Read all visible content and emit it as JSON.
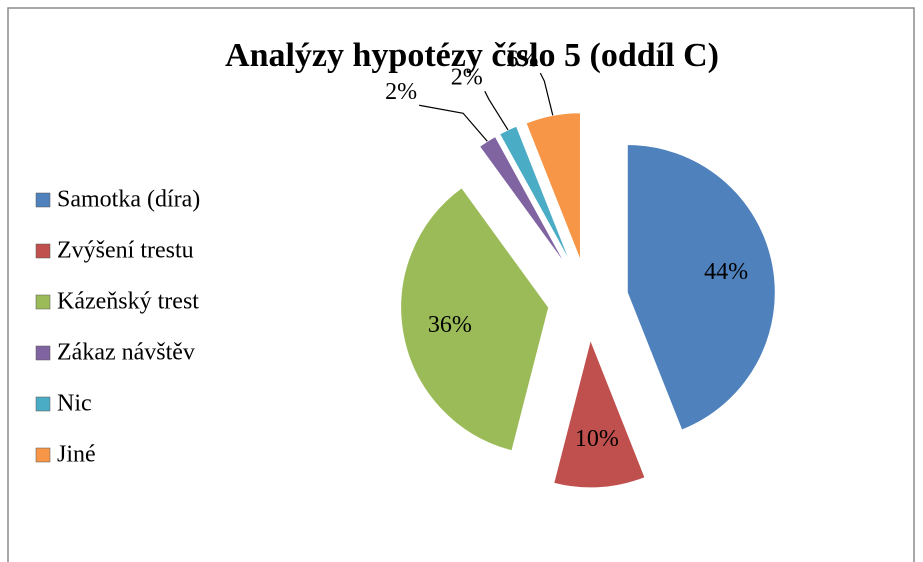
{
  "chart_data": {
    "type": "pie",
    "title": "Analýzy hypotézy číslo 5 (oddíl C)",
    "categories": [
      "Samotka (díra)",
      "Zvýšení trestu",
      "Kázeňský trest",
      "Zákaz návštěv",
      "Nic",
      "Jiné"
    ],
    "values": [
      44,
      10,
      36,
      2,
      2,
      6
    ],
    "value_labels": [
      "44%",
      "10%",
      "36%",
      "2%",
      "2%",
      "6%"
    ],
    "colors": [
      "#4f81bd",
      "#c0504d",
      "#9bbb59",
      "#8064a2",
      "#4bacc6",
      "#f79646"
    ],
    "legend": "left"
  }
}
